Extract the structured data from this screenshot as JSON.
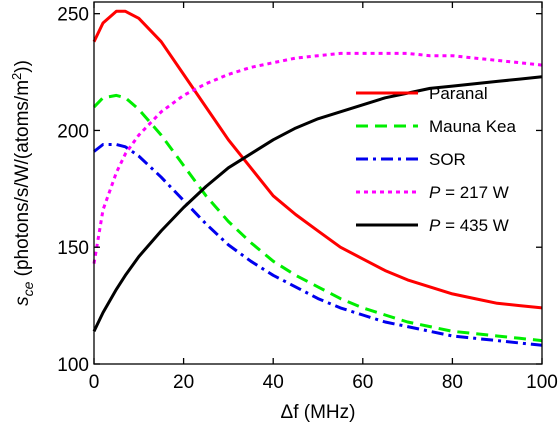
{
  "chart_data": {
    "type": "line",
    "xlabel": {
      "symbol": "Δf",
      "var": "f",
      "unit": "(MHz)"
    },
    "ylabel": {
      "main": "s",
      "sub": "ce",
      "unit": "(photons/s/W/(atoms/m",
      "sup": "2",
      "end": "))"
    },
    "xlim": [
      0,
      100
    ],
    "ylim": [
      100,
      255
    ],
    "xticks": [
      0,
      20,
      40,
      60,
      80,
      100
    ],
    "yticks": [
      100,
      150,
      200,
      250
    ],
    "grid": false,
    "legend_position": "right",
    "x": [
      0,
      2,
      5,
      7,
      10,
      15,
      20,
      25,
      30,
      35,
      40,
      45,
      50,
      55,
      60,
      65,
      70,
      75,
      80,
      85,
      90,
      95,
      100
    ],
    "series": [
      {
        "name": "Paranal",
        "legend": {
          "prefix": "",
          "var": "",
          "suffix": "Paranal"
        },
        "color": "#ff0000",
        "dash": "solid",
        "values": [
          238,
          246,
          251,
          251,
          248,
          238,
          224,
          210,
          196,
          184,
          172,
          164,
          157,
          150,
          145,
          140,
          136,
          133,
          130,
          128,
          126,
          125,
          124
        ]
      },
      {
        "name": "Mauna Kea",
        "legend": {
          "prefix": "",
          "var": "",
          "suffix": "Mauna Kea"
        },
        "color": "#00ee00",
        "dash": "dashed",
        "values": [
          210,
          214,
          215,
          214,
          209,
          198,
          185,
          172,
          161,
          152,
          144,
          138,
          133,
          128,
          124,
          121,
          118,
          116,
          114,
          113,
          112,
          111,
          110
        ]
      },
      {
        "name": "SOR",
        "legend": {
          "prefix": "",
          "var": "",
          "suffix": "SOR"
        },
        "color": "#0000ee",
        "dash": "dashdot",
        "values": [
          191,
          194,
          194,
          193,
          189,
          180,
          170,
          160,
          151,
          144,
          138,
          133,
          128,
          124,
          121,
          118,
          116,
          114,
          112,
          111,
          110,
          109,
          108
        ]
      },
      {
        "name": "P = 217 W",
        "legend": {
          "prefix": "",
          "var": "P",
          "suffix": " = 217 W"
        },
        "color": "#ff00ff",
        "dash": "dotted",
        "values": [
          143,
          166,
          182,
          190,
          198,
          208,
          215,
          220,
          224,
          227,
          229,
          231,
          232,
          233,
          233,
          233,
          233,
          232,
          232,
          231,
          230,
          229,
          228
        ]
      },
      {
        "name": "P = 435 W",
        "legend": {
          "prefix": "",
          "var": "P",
          "suffix": " = 435 W"
        },
        "color": "#000000",
        "dash": "solid",
        "values": [
          114,
          122,
          132,
          138,
          146,
          157,
          167,
          176,
          184,
          190,
          196,
          201,
          205,
          208,
          211,
          214,
          216,
          218,
          219,
          220,
          221,
          222,
          223
        ]
      }
    ]
  }
}
